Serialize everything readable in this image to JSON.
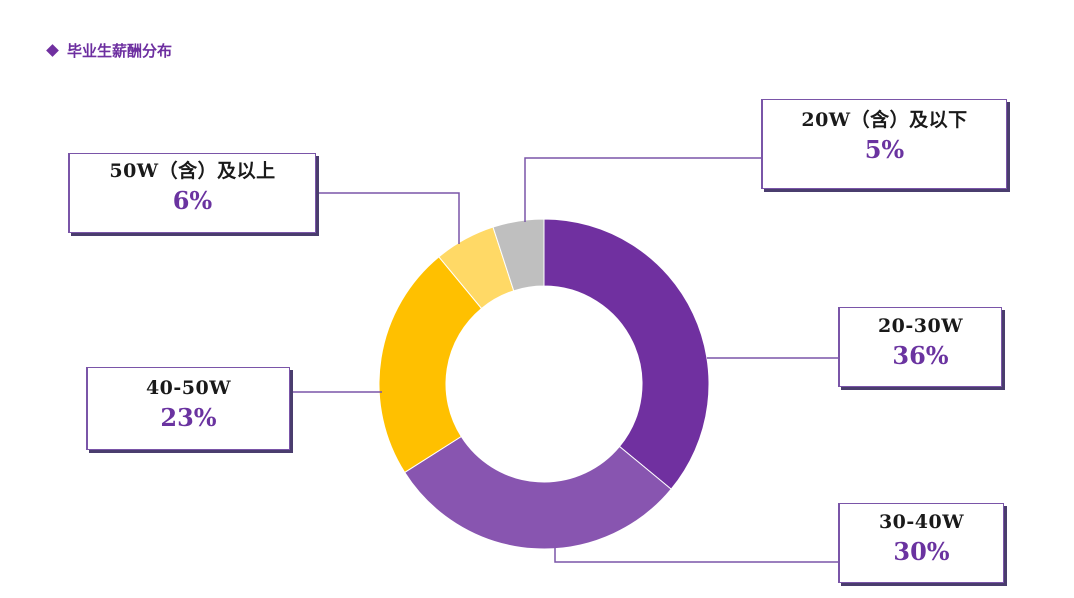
{
  "header": {
    "title": "毕业生薪酬分布",
    "bullet_icon": "diamond-icon"
  },
  "colors": {
    "accent": "#7030a0",
    "leader_line": "#7a55a8"
  },
  "chart_data": {
    "type": "pie",
    "donut": true,
    "title": "毕业生薪酬分布",
    "start_angle_deg": 0,
    "direction": "clockwise",
    "slices": [
      {
        "category": "20-30W",
        "value": 36,
        "label": "36%",
        "color": "#7030a0"
      },
      {
        "category": "30-40W",
        "value": 30,
        "label": "30%",
        "color": "#8855b0"
      },
      {
        "category": "40-50W",
        "value": 23,
        "label": "23%",
        "color": "#ffc000"
      },
      {
        "category": "50W（含）及以上",
        "value": 6,
        "label": "6%",
        "color": "#ffd966"
      },
      {
        "category": "20W（含）及以下",
        "value": 5,
        "label": "5%",
        "color": "#bfbfbf"
      }
    ]
  }
}
